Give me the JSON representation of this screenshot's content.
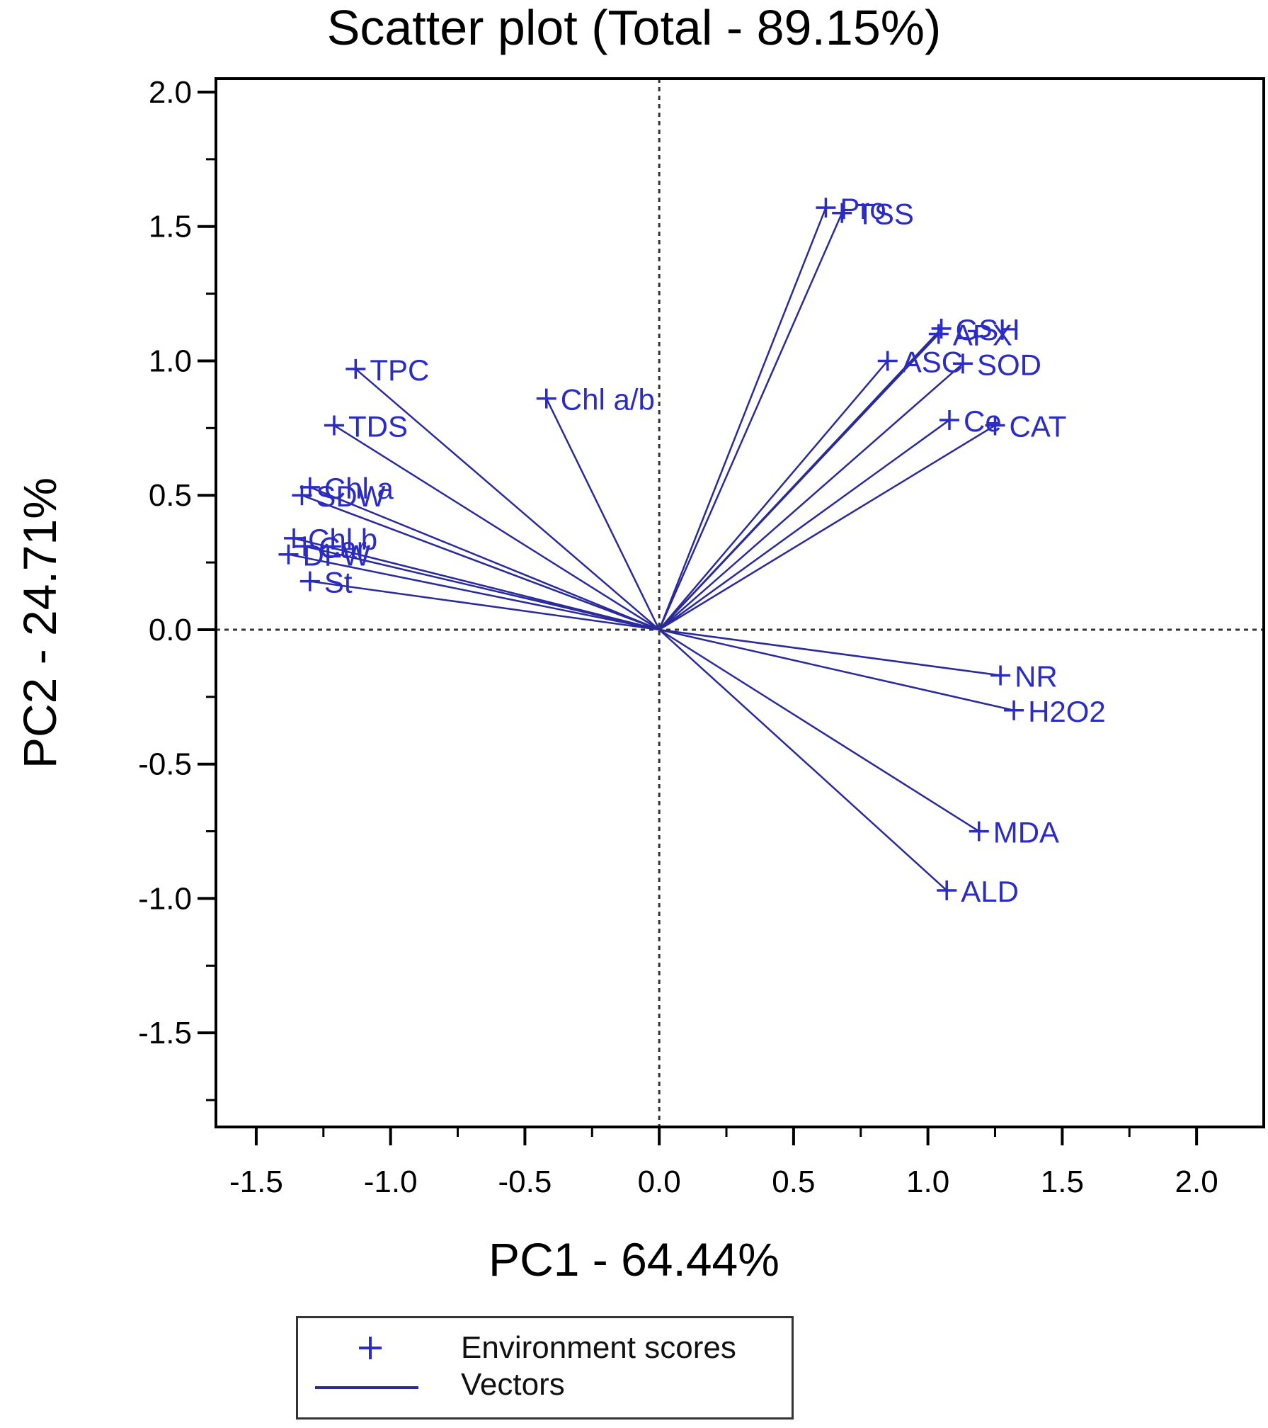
{
  "chart_data": {
    "type": "scatter",
    "title": "Scatter plot (Total - 89.15%)",
    "xlabel": "PC1 - 64.44%",
    "ylabel": "PC2 - 24.71%",
    "xlim": [
      -1.65,
      2.25
    ],
    "ylim": [
      -1.85,
      2.05
    ],
    "xticks": [
      "-1.5",
      "-1.0",
      "-0.5",
      "0.0",
      "0.5",
      "1.0",
      "1.5",
      "2.0"
    ],
    "yticks": [
      "2.0",
      "1.5",
      "1.0",
      "0.5",
      "0.0",
      "-0.5",
      "-1.0",
      "-1.5"
    ],
    "xtick_values": [
      -1.5,
      -1.0,
      -0.5,
      0.0,
      0.5,
      1.0,
      1.5,
      2.0
    ],
    "ytick_values": [
      2.0,
      1.5,
      1.0,
      0.5,
      0.0,
      -0.5,
      -1.0,
      -1.5
    ],
    "legend": {
      "position": "bottom",
      "scores_label": "Environment scores",
      "vectors_label": "Vectors"
    },
    "colors": {
      "series": "#2b2bc8",
      "vector": "#2a2a9a",
      "axis": "#000000",
      "zero_line": "#333333"
    },
    "points": [
      {
        "label": "Pro",
        "x": 0.62,
        "y": 1.57
      },
      {
        "label": "TSS",
        "x": 0.68,
        "y": 1.55
      },
      {
        "label": "GSH",
        "x": 1.05,
        "y": 1.12
      },
      {
        "label": "APX",
        "x": 1.04,
        "y": 1.1
      },
      {
        "label": "ASC",
        "x": 0.85,
        "y": 1.0
      },
      {
        "label": "SOD",
        "x": 1.13,
        "y": 0.99
      },
      {
        "label": "Ce",
        "x": 1.08,
        "y": 0.78
      },
      {
        "label": "CAT",
        "x": 1.25,
        "y": 0.76
      },
      {
        "label": "TPC",
        "x": -1.13,
        "y": 0.97
      },
      {
        "label": "Chl a/b",
        "x": -0.42,
        "y": 0.86
      },
      {
        "label": "TDS",
        "x": -1.21,
        "y": 0.76
      },
      {
        "label": "Chl a",
        "x": -1.3,
        "y": 0.53
      },
      {
        "label": "SDW",
        "x": -1.33,
        "y": 0.5
      },
      {
        "label": "Chl b",
        "x": -1.36,
        "y": 0.34
      },
      {
        "label": "Car",
        "x": -1.32,
        "y": 0.31
      },
      {
        "label": "DFW",
        "x": -1.38,
        "y": 0.28
      },
      {
        "label": "St",
        "x": -1.3,
        "y": 0.18
      },
      {
        "label": "NR",
        "x": 1.27,
        "y": -0.17
      },
      {
        "label": "H2O2",
        "x": 1.32,
        "y": -0.3
      },
      {
        "label": "MDA",
        "x": 1.19,
        "y": -0.75
      },
      {
        "label": "ALD",
        "x": 1.07,
        "y": -0.97
      }
    ]
  }
}
